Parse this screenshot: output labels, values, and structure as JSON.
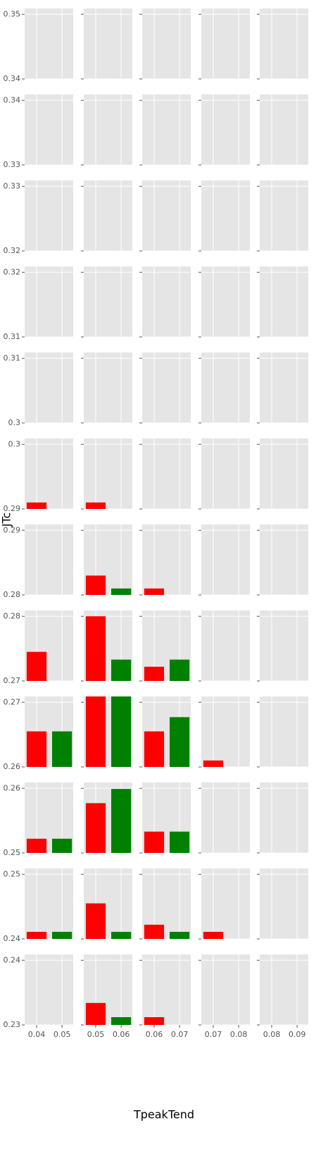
{
  "chart_data": {
    "type": "bar",
    "xlabel": "TpeakTend",
    "ylabel": "JTc",
    "colors": [
      "#ff0000",
      "#008000"
    ],
    "columns": [
      {
        "xlim": [
          0.0353,
          0.0544
        ],
        "xticks": [
          0.04,
          0.05
        ]
      },
      {
        "xlim": [
          0.0453,
          0.0644
        ],
        "xticks": [
          0.05,
          0.06
        ]
      },
      {
        "xlim": [
          0.0553,
          0.0744
        ],
        "xticks": [
          0.06,
          0.07
        ]
      },
      {
        "xlim": [
          0.0653,
          0.0844
        ],
        "xticks": [
          0.07,
          0.08
        ]
      },
      {
        "xlim": [
          0.0753,
          0.0944
        ],
        "xticks": [
          0.08,
          0.09
        ]
      }
    ],
    "rows": [
      {
        "ylim": [
          0.34,
          0.3509
        ],
        "yticks": [
          0.34,
          0.35
        ],
        "values": [
          [
            null,
            null
          ],
          [
            null,
            null
          ],
          [
            null,
            null
          ],
          [
            null,
            null
          ],
          [
            null,
            null
          ]
        ]
      },
      {
        "ylim": [
          0.33,
          0.3409
        ],
        "yticks": [
          0.33,
          0.34
        ],
        "values": [
          [
            null,
            null
          ],
          [
            null,
            null
          ],
          [
            null,
            null
          ],
          [
            null,
            null
          ],
          [
            null,
            null
          ]
        ]
      },
      {
        "ylim": [
          0.32,
          0.3309
        ],
        "yticks": [
          0.32,
          0.33
        ],
        "values": [
          [
            null,
            null
          ],
          [
            null,
            null
          ],
          [
            null,
            null
          ],
          [
            null,
            null
          ],
          [
            null,
            null
          ]
        ]
      },
      {
        "ylim": [
          0.31,
          0.3209
        ],
        "yticks": [
          0.31,
          0.32
        ],
        "values": [
          [
            null,
            null
          ],
          [
            null,
            null
          ],
          [
            null,
            null
          ],
          [
            null,
            null
          ],
          [
            null,
            null
          ]
        ]
      },
      {
        "ylim": [
          0.3,
          0.3109
        ],
        "yticks": [
          0.3,
          0.31
        ],
        "values": [
          [
            null,
            null
          ],
          [
            null,
            null
          ],
          [
            null,
            null
          ],
          [
            null,
            null
          ],
          [
            null,
            null
          ]
        ]
      },
      {
        "ylim": [
          0.29,
          0.3009
        ],
        "yticks": [
          0.29,
          0.3
        ],
        "values": [
          [
            0.291,
            null
          ],
          [
            0.291,
            null
          ],
          [
            null,
            null
          ],
          [
            null,
            null
          ],
          [
            null,
            null
          ]
        ]
      },
      {
        "ylim": [
          0.28,
          0.2909
        ],
        "yticks": [
          0.28,
          0.29
        ],
        "values": [
          [
            null,
            null
          ],
          [
            0.283,
            0.281
          ],
          [
            0.281,
            null
          ],
          [
            null,
            null
          ],
          [
            null,
            null
          ]
        ]
      },
      {
        "ylim": [
          0.27,
          0.2809
        ],
        "yticks": [
          0.27,
          0.28
        ],
        "values": [
          [
            0.2745,
            null
          ],
          [
            0.28,
            0.2733
          ],
          [
            0.2722,
            0.2733
          ],
          [
            null,
            null
          ],
          [
            null,
            null
          ]
        ]
      },
      {
        "ylim": [
          0.26,
          0.2709
        ],
        "yticks": [
          0.26,
          0.27
        ],
        "values": [
          [
            0.2655,
            0.2655
          ],
          [
            0.271,
            0.271
          ],
          [
            0.2655,
            0.2677
          ],
          [
            0.261,
            null
          ],
          [
            null,
            null
          ]
        ]
      },
      {
        "ylim": [
          0.25,
          0.2609
        ],
        "yticks": [
          0.25,
          0.26
        ],
        "values": [
          [
            0.2522,
            0.2522
          ],
          [
            0.2577,
            0.2599
          ],
          [
            0.2533,
            0.2533
          ],
          [
            null,
            null
          ],
          [
            null,
            null
          ]
        ]
      },
      {
        "ylim": [
          0.24,
          0.2509
        ],
        "yticks": [
          0.24,
          0.25
        ],
        "values": [
          [
            0.2411,
            0.2411
          ],
          [
            0.2455,
            0.2411
          ],
          [
            0.2422,
            0.2411
          ],
          [
            0.2411,
            null
          ],
          [
            null,
            null
          ]
        ]
      },
      {
        "ylim": [
          0.23,
          0.2409
        ],
        "yticks": [
          0.23,
          0.24
        ],
        "values": [
          [
            null,
            null
          ],
          [
            0.2334,
            0.2312
          ],
          [
            0.2312,
            null
          ],
          [
            null,
            null
          ],
          [
            null,
            null
          ]
        ]
      }
    ]
  }
}
